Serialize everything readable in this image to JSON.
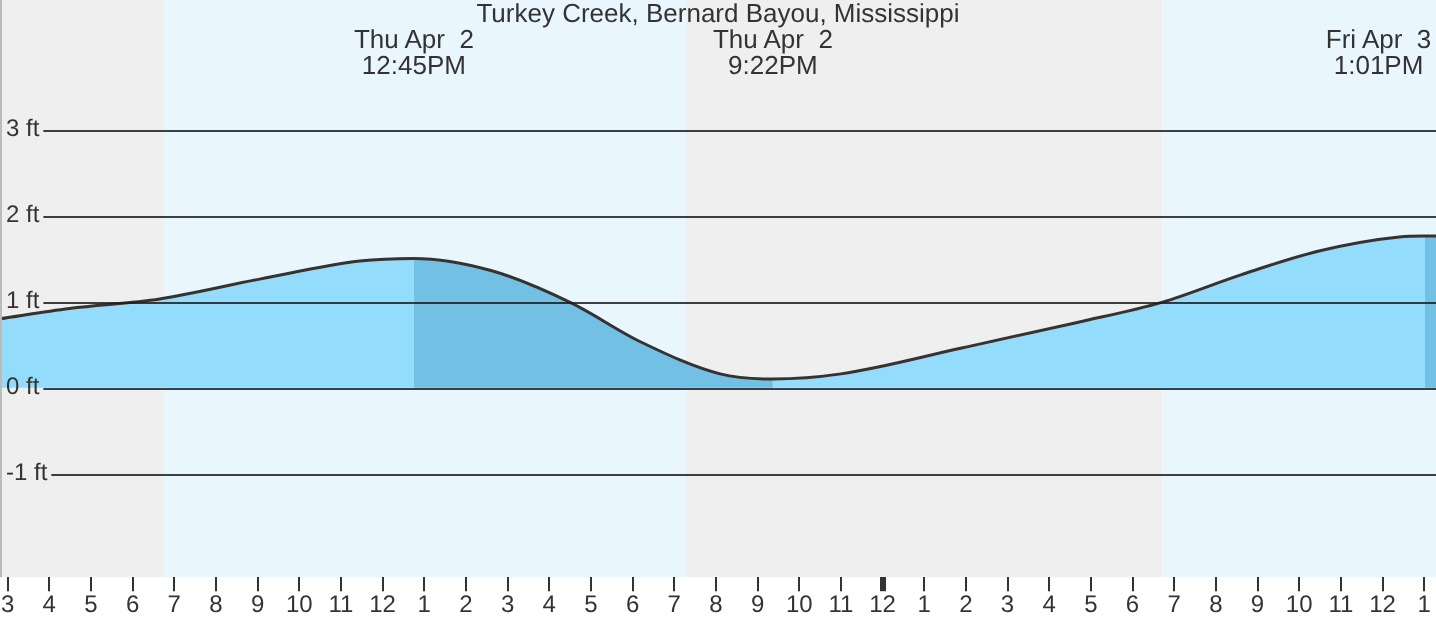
{
  "chart_data": {
    "type": "area",
    "title": "Turkey Creek, Bernard Bayou, Mississippi",
    "series": [
      {
        "color": "#94dcfc",
        "x": [
          "--04-02T02:49",
          "--04-02T04:29",
          "--04-02T06:39",
          "--04-02T09:03",
          "--04-02T11:27",
          "--04-02T12:45",
          "--04-02T14:36",
          "--04-02T16:30",
          "--04-02T18:12",
          "--04-02T20:06",
          "--04-02T21:22",
          "--04-02T23:00",
          "--04-03T01:54",
          "--04-03T04:42",
          "--04-03T06:42",
          "--04-03T08:36",
          "--04-03T10:30",
          "--04-03T12:24",
          "--04-03T13:01",
          "--04-03T13:17"
        ],
        "values": [
          0.8,
          0.92,
          1.03,
          1.26,
          1.47,
          1.5,
          1.36,
          0.99,
          0.53,
          0.16,
          0.1,
          0.16,
          0.46,
          0.76,
          0.99,
          1.31,
          1.59,
          1.75,
          1.76,
          1.76
        ]
      },
      {
        "color": "#72c0e4",
        "x": [
          "--04-02T12:45",
          "--04-02T14:36",
          "--04-02T16:30",
          "--04-02T18:12",
          "--04-02T20:06",
          "--04-02T21:22"
        ],
        "values": [
          1.5,
          1.36,
          0.99,
          0.53,
          0.16,
          0.1
        ]
      },
      {
        "color": "#72c0e4",
        "x": [
          "--04-03T13:01",
          "--04-03T13:17"
        ],
        "values": [
          1.76,
          1.76
        ]
      }
    ],
    "xlim": [
      "--04-02T02:49",
      "--04-03T13:17"
    ],
    "xticks": [
      {
        "value": "--04-02T03:00",
        "label": "3"
      },
      {
        "value": "--04-02T04:00",
        "label": "4"
      },
      {
        "value": "--04-02T05:00",
        "label": "5"
      },
      {
        "value": "--04-02T06:00",
        "label": "6"
      },
      {
        "value": "--04-02T07:00",
        "label": "7"
      },
      {
        "value": "--04-02T08:00",
        "label": "8"
      },
      {
        "value": "--04-02T09:00",
        "label": "9"
      },
      {
        "value": "--04-02T10:00",
        "label": "10"
      },
      {
        "value": "--04-02T11:00",
        "label": "11"
      },
      {
        "value": "--04-02T12:00",
        "label": "12"
      },
      {
        "value": "--04-02T13:00",
        "label": "1"
      },
      {
        "value": "--04-02T14:00",
        "label": "2"
      },
      {
        "value": "--04-02T15:00",
        "label": "3"
      },
      {
        "value": "--04-02T16:00",
        "label": "4"
      },
      {
        "value": "--04-02T17:00",
        "label": "5"
      },
      {
        "value": "--04-02T18:00",
        "label": "6"
      },
      {
        "value": "--04-02T19:00",
        "label": "7"
      },
      {
        "value": "--04-02T20:00",
        "label": "8"
      },
      {
        "value": "--04-02T21:00",
        "label": "9"
      },
      {
        "value": "--04-02T22:00",
        "label": "10"
      },
      {
        "value": "--04-02T23:00",
        "label": "11"
      },
      {
        "value": "--04-03T00:00",
        "label": "12"
      },
      {
        "value": "--04-03T01:00",
        "label": "1"
      },
      {
        "value": "--04-03T02:00",
        "label": "2"
      },
      {
        "value": "--04-03T03:00",
        "label": "3"
      },
      {
        "value": "--04-03T04:00",
        "label": "4"
      },
      {
        "value": "--04-03T05:00",
        "label": "5"
      },
      {
        "value": "--04-03T06:00",
        "label": "6"
      },
      {
        "value": "--04-03T07:00",
        "label": "7"
      },
      {
        "value": "--04-03T08:00",
        "label": "8"
      },
      {
        "value": "--04-03T09:00",
        "label": "9"
      },
      {
        "value": "--04-03T10:00",
        "label": "10"
      },
      {
        "value": "--04-03T11:00",
        "label": "11"
      },
      {
        "value": "--04-03T12:00",
        "label": "12"
      },
      {
        "value": "--04-03T13:00",
        "label": "1"
      }
    ],
    "ylim": [
      -2.2,
      4.5
    ],
    "yticks": [
      {
        "value": -1,
        "label": "-1 ft"
      },
      {
        "value": 0,
        "label": "0 ft"
      },
      {
        "value": 1,
        "label": "1 ft"
      },
      {
        "value": 2,
        "label": "2 ft"
      },
      {
        "value": 3,
        "label": "3 ft"
      }
    ],
    "grid": "y",
    "bands": [
      {
        "axis": "x",
        "from": "--04-02T02:49",
        "to": "--04-02T06:45",
        "color": "#efefef"
      },
      {
        "axis": "x",
        "from": "--04-02T06:45",
        "to": "--04-02T19:17",
        "color": "#eaf6fe"
      },
      {
        "axis": "x",
        "from": "--04-02T19:17",
        "to": "--04-03T06:43",
        "color": "#efefef"
      },
      {
        "axis": "x",
        "from": "--04-03T06:43",
        "to": "--04-03T13:17",
        "color": "#eaf6fe"
      }
    ],
    "annotations": [
      "Thu Apr  2\n12:45PM",
      "Thu Apr  2\n9:22PM",
      "Fri Apr  3\n1:01PM"
    ]
  }
}
